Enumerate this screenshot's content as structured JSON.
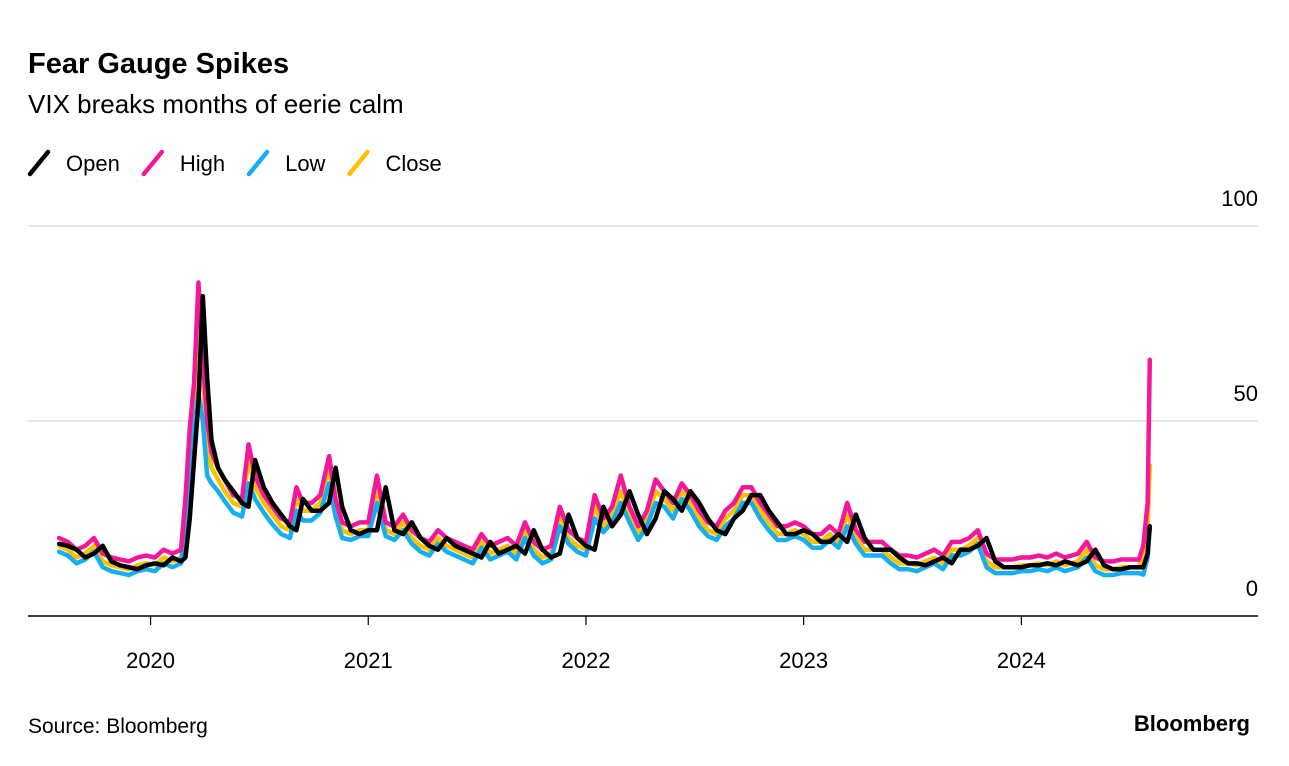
{
  "chart_data": {
    "type": "line",
    "title": "Fear Gauge Spikes",
    "subtitle": "VIX breaks months of eerie calm",
    "source": "Source: Bloomberg",
    "logo": "Bloomberg",
    "x": [
      2019.58,
      2019.62,
      2019.66,
      2019.7,
      2019.74,
      2019.78,
      2019.82,
      2019.86,
      2019.9,
      2019.94,
      2019.98,
      2020.02,
      2020.06,
      2020.1,
      2020.14,
      2020.16,
      2020.18,
      2020.2,
      2020.22,
      2020.24,
      2020.26,
      2020.28,
      2020.31,
      2020.34,
      2020.38,
      2020.42,
      2020.45,
      2020.48,
      2020.52,
      2020.56,
      2020.6,
      2020.64,
      2020.67,
      2020.7,
      2020.74,
      2020.78,
      2020.82,
      2020.85,
      2020.88,
      2020.92,
      2020.96,
      2021.0,
      2021.04,
      2021.08,
      2021.12,
      2021.16,
      2021.2,
      2021.24,
      2021.28,
      2021.32,
      2021.36,
      2021.4,
      2021.44,
      2021.48,
      2021.52,
      2021.56,
      2021.6,
      2021.64,
      2021.68,
      2021.72,
      2021.76,
      2021.8,
      2021.84,
      2021.88,
      2021.92,
      2021.96,
      2022.0,
      2022.04,
      2022.08,
      2022.12,
      2022.16,
      2022.2,
      2022.24,
      2022.28,
      2022.32,
      2022.36,
      2022.4,
      2022.44,
      2022.48,
      2022.52,
      2022.56,
      2022.6,
      2022.64,
      2022.68,
      2022.72,
      2022.76,
      2022.8,
      2022.84,
      2022.88,
      2022.92,
      2022.96,
      2023.0,
      2023.04,
      2023.08,
      2023.12,
      2023.16,
      2023.2,
      2023.24,
      2023.28,
      2023.32,
      2023.36,
      2023.4,
      2023.44,
      2023.48,
      2023.52,
      2023.56,
      2023.6,
      2023.64,
      2023.68,
      2023.72,
      2023.76,
      2023.8,
      2023.84,
      2023.88,
      2023.92,
      2023.96,
      2024.0,
      2024.04,
      2024.08,
      2024.12,
      2024.16,
      2024.2,
      2024.26,
      2024.3,
      2024.34,
      2024.38,
      2024.42,
      2024.46,
      2024.5,
      2024.54,
      2024.56,
      2024.58,
      2024.59
    ],
    "series": [
      {
        "name": "Open",
        "color": "#000000",
        "values": [
          18.5,
          18,
          17,
          15,
          16,
          18,
          14,
          13,
          12.5,
          12,
          13,
          13.5,
          13,
          15,
          14,
          15,
          25,
          40,
          55,
          82,
          61,
          45,
          38,
          35,
          32,
          29,
          28,
          40,
          33,
          29,
          26,
          23,
          22,
          30,
          27,
          27,
          29,
          38,
          28,
          22,
          21,
          22,
          22,
          33,
          22,
          21,
          24,
          20,
          18,
          17,
          20,
          18,
          17,
          16,
          15,
          19,
          16,
          17,
          18,
          16,
          22,
          17,
          15,
          16,
          26,
          20,
          18,
          17,
          28,
          23,
          26,
          32,
          26,
          21,
          25,
          32,
          30,
          27,
          32,
          29,
          25,
          22,
          21,
          25,
          27,
          31,
          31,
          27,
          24,
          21,
          21,
          22,
          21,
          19,
          19,
          21,
          19,
          26,
          20,
          17,
          17,
          17,
          15,
          13.5,
          13.5,
          13,
          14,
          15,
          13.5,
          17,
          17,
          18,
          20,
          14,
          12.5,
          12.5,
          12.5,
          13,
          13,
          13.5,
          13,
          14,
          13,
          14,
          17,
          13,
          12,
          12,
          12.5,
          12.5,
          12.5,
          16,
          23
        ]
      },
      {
        "name": "High",
        "color": "#f5179a",
        "values": [
          20,
          19,
          17,
          18,
          20,
          16,
          15,
          14.5,
          14,
          15,
          15.5,
          15,
          17,
          16,
          17,
          30,
          48,
          60,
          85.5,
          66,
          50,
          42,
          38,
          35,
          31,
          30,
          44,
          36,
          31,
          28,
          25,
          24,
          33,
          29,
          29,
          31,
          41,
          30,
          24,
          23,
          24,
          24,
          36,
          24,
          23,
          26,
          22,
          20,
          19,
          22,
          20,
          19,
          18,
          17,
          21,
          18,
          19,
          20,
          18,
          24,
          19,
          17,
          18,
          28,
          22,
          20,
          19,
          31,
          25,
          28,
          36,
          28,
          23,
          27,
          35,
          32,
          29,
          34,
          31,
          27,
          24,
          23,
          27,
          29,
          33,
          33,
          29,
          26,
          23,
          23,
          24,
          23,
          21,
          21,
          23,
          21,
          29,
          22,
          19,
          19,
          19,
          17,
          15.5,
          15.5,
          15,
          16,
          17,
          15.5,
          19,
          19,
          20,
          22,
          16,
          14.5,
          14.5,
          14.5,
          15,
          15,
          15.5,
          15,
          16,
          15,
          16,
          19,
          15,
          14,
          14,
          14.5,
          14.5,
          14.5,
          18,
          29,
          65.7
        ]
      },
      {
        "name": "Low",
        "color": "#16aef0",
        "values": [
          16.5,
          15.5,
          13.5,
          14.5,
          16.5,
          12.5,
          11.5,
          11,
          10.5,
          11.5,
          12,
          11.5,
          13.5,
          12.5,
          13.5,
          22,
          35,
          48,
          57,
          50,
          36,
          34,
          32,
          29.5,
          26.5,
          25.5,
          34,
          30,
          26.5,
          23.5,
          21,
          20,
          27,
          24.5,
          24.5,
          26.5,
          34,
          25.5,
          20,
          19.5,
          20.5,
          20.5,
          29,
          20.5,
          19.5,
          22,
          18.5,
          16.5,
          15.5,
          18.5,
          16.5,
          15.5,
          14.5,
          13.5,
          17.5,
          14.5,
          15.5,
          16.5,
          14.5,
          20,
          15.5,
          13.5,
          14.5,
          23,
          18.5,
          16.5,
          15.5,
          25,
          21.5,
          24,
          29,
          24,
          19.5,
          23,
          29,
          28,
          25,
          30,
          27,
          23,
          20.5,
          19.5,
          23,
          25,
          29,
          29,
          25,
          22,
          19.5,
          19.5,
          20.5,
          19.5,
          17.5,
          17.5,
          19.5,
          17.5,
          23,
          18.5,
          15.5,
          15.5,
          15.5,
          13.5,
          12,
          12,
          11.5,
          12.5,
          13.5,
          12,
          15.5,
          15.5,
          16.5,
          18.5,
          12.5,
          11,
          11,
          11,
          11.5,
          11.5,
          12,
          11.5,
          12.5,
          11.5,
          12.5,
          15,
          11.5,
          10.5,
          10.5,
          11,
          11,
          11,
          10.6,
          15,
          23
        ]
      },
      {
        "name": "Close",
        "color": "#fcc200",
        "values": [
          18,
          17,
          15,
          16,
          18,
          14,
          13,
          12.5,
          12,
          13,
          13.5,
          13,
          15,
          14,
          15,
          25,
          40,
          55,
          82,
          61,
          45,
          38,
          35,
          32,
          29,
          28,
          40,
          33,
          29,
          26,
          23,
          22,
          30,
          27,
          27,
          29,
          38,
          28,
          22,
          21,
          22,
          22,
          33,
          22,
          21,
          24,
          20,
          18,
          17,
          20,
          18,
          17,
          16,
          15,
          19,
          16,
          17,
          18,
          16,
          22,
          17,
          15,
          16,
          26,
          20,
          18,
          17,
          28,
          23,
          26,
          32,
          26,
          21,
          25,
          32,
          30,
          27,
          32,
          29,
          25,
          22,
          21,
          25,
          27,
          31,
          31,
          27,
          24,
          21,
          21,
          22,
          21,
          19,
          19,
          21,
          19,
          26,
          20,
          17,
          17,
          17,
          15,
          13.5,
          13.5,
          13,
          14,
          15,
          13.5,
          17,
          17,
          18,
          20,
          14,
          12.5,
          12.5,
          12.5,
          13,
          13,
          13.5,
          13,
          14,
          13,
          14,
          17,
          13,
          12,
          12,
          12.5,
          12.5,
          12.5,
          16,
          23,
          38.6
        ]
      }
    ],
    "xlim": [
      2019.437,
      2025.087
    ],
    "xticks": [
      2020,
      2021,
      2022,
      2023,
      2024
    ],
    "ylim": [
      0,
      100
    ],
    "yticks": [
      0,
      50,
      100
    ],
    "grid": true
  }
}
